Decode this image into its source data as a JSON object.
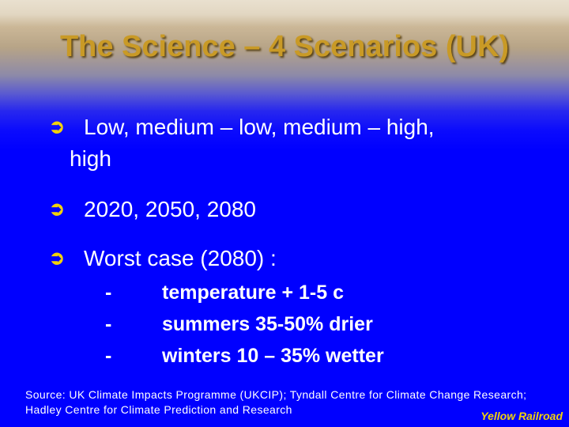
{
  "slide": {
    "title": "The Science – 4 Scenarios (UK)",
    "bullets": [
      {
        "icon": "curved-arrow-icon",
        "line1": "Low, medium – low, medium – high,",
        "line2": "high"
      },
      {
        "icon": "curved-arrow-icon",
        "line1": "2020, 2050, 2080"
      },
      {
        "icon": "curved-arrow-icon",
        "line1": "Worst case (2080) :"
      }
    ],
    "sub_items": [
      {
        "marker": "-",
        "text": "temperature + 1-5 c"
      },
      {
        "marker": "-",
        "text": "summers 35-50% drier"
      },
      {
        "marker": "-",
        "text": "winters 10 – 35% wetter"
      }
    ],
    "source": "Source: UK Climate Impacts Programme (UKCIP); Tyndall Centre for Climate Change Research; Hadley Centre for Climate Prediction and Research",
    "footer": "Yellow Railroad"
  },
  "colors": {
    "title": "#c99a26",
    "background": "#0000ff",
    "bullet_arrow": "#f2d20a",
    "body_text": "#ffffff",
    "footer": "#f2d20a"
  }
}
